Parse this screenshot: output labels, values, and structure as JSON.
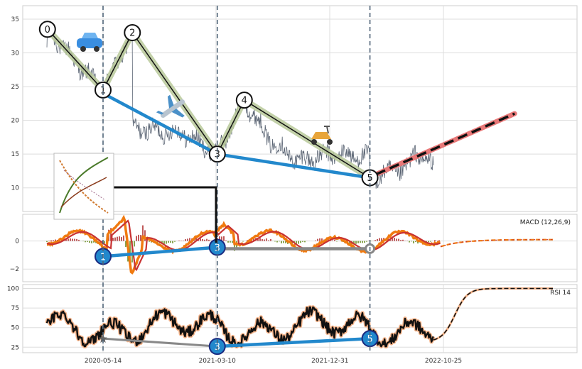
{
  "chart_data": {
    "type": "line",
    "x_ticks": [
      "2020-05-14",
      "2021-03-10",
      "2021-12-31",
      "2022-10-25"
    ],
    "grid": true,
    "panels": [
      {
        "id": "price",
        "label": "",
        "ylim": [
          6.5,
          37
        ],
        "y_ticks": [
          10,
          15,
          20,
          25,
          30,
          35
        ],
        "wave_points": [
          {
            "label": "0",
            "date": "2019-12-20",
            "value": 33.5
          },
          {
            "label": "1",
            "date": "2020-05-14",
            "value": 24.5
          },
          {
            "label": "2",
            "date": "2020-07-30",
            "value": 33.0
          },
          {
            "label": "3",
            "date": "2021-03-10",
            "value": 15.0
          },
          {
            "label": "4",
            "date": "2021-05-20",
            "value": 23.0
          },
          {
            "label": "5",
            "date": "2022-04-15",
            "value": 11.5
          }
        ],
        "trendline": [
          {
            "date": "2020-05-14",
            "value": 24.0
          },
          {
            "date": "2021-03-10",
            "value": 15.0
          },
          {
            "date": "2022-04-15",
            "value": 11.5
          }
        ],
        "forecast": [
          {
            "date": "2022-05-01",
            "value": 12.0
          },
          {
            "date": "2023-04-30",
            "value": 21.0
          }
        ]
      },
      {
        "id": "macd",
        "label": "MACD (12,26,9)",
        "ylim": [
          -2.9,
          1.9
        ],
        "y_ticks": [
          -2,
          0
        ],
        "divergence": [
          {
            "label": "1",
            "date": "2020-05-14",
            "value": -1.1
          },
          {
            "label": "3",
            "date": "2021-03-10",
            "value": -0.45
          }
        ],
        "flat_line": [
          {
            "date": "2021-03-10",
            "value": -0.55
          },
          {
            "date": "2022-04-15",
            "value": -0.55
          }
        ]
      },
      {
        "id": "rsi",
        "label": "RSI 14",
        "ylim": [
          18,
          105
        ],
        "y_ticks": [
          25,
          50,
          75,
          100
        ],
        "divergence": [
          {
            "label": "3",
            "date": "2021-03-10",
            "value": 26
          },
          {
            "label": "5",
            "date": "2022-04-15",
            "value": 36
          }
        ],
        "gray_line": [
          {
            "date": "2020-05-14",
            "value": 36
          },
          {
            "date": "2021-03-10",
            "value": 26
          }
        ]
      }
    ],
    "colors": {
      "price": "#5c6675",
      "wave_line": "#111111",
      "wave_band": "#b9c99a",
      "trend": "#2288cc",
      "forecast_band": "#e87878",
      "forecast_dash": "#111111",
      "macd_line": "#f07a10",
      "signal_line": "#c83232",
      "hist_pos": "#b03030",
      "hist_neg": "#6b8e23",
      "rsi": "#111111",
      "rsi_glow": "#f5b48a",
      "vline": "#4f6478",
      "marker_fill": "#2288cc",
      "gray": "#888888"
    }
  }
}
